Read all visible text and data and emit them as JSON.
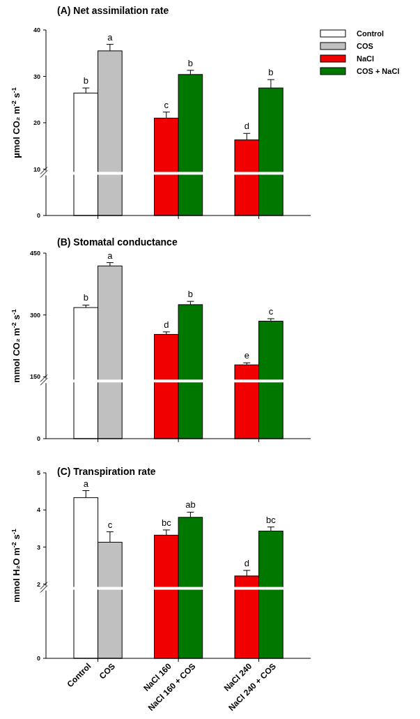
{
  "chart_data": [
    {
      "type": "bar",
      "title": "(A) Net assimilation rate",
      "ylabel": "µmol CO₂ m$^{-2}$ s$^{-1}$",
      "categories": [
        "Control",
        "COS",
        "NaCl 160",
        "NaCl 160 + COS",
        "NaCl 240",
        "NaCl 240 + COS"
      ],
      "series": [
        {
          "name": "Control",
          "color": "#ffffff",
          "values": [
            26.4,
            null,
            null,
            null,
            null,
            null
          ],
          "errors": [
            1.1,
            null,
            null,
            null,
            null,
            null
          ]
        },
        {
          "name": "COS",
          "color": "#c0c0c0",
          "values": [
            null,
            35.5,
            null,
            null,
            null,
            null
          ],
          "errors": [
            null,
            1.4,
            null,
            null,
            null,
            null
          ]
        },
        {
          "name": "NaCl",
          "color": "#f00000",
          "values": [
            null,
            null,
            21.0,
            null,
            16.3,
            null
          ],
          "errors": [
            null,
            null,
            1.3,
            null,
            1.4,
            null
          ]
        },
        {
          "name": "COS + NaCl",
          "color": "#007800",
          "values": [
            null,
            null,
            null,
            30.4,
            null,
            27.5
          ],
          "errors": [
            null,
            null,
            null,
            0.9,
            null,
            1.8
          ]
        }
      ],
      "ylim": [
        0,
        40
      ],
      "yticks": [
        0,
        10,
        20,
        30,
        40
      ],
      "legend": "top right",
      "tick_labels": "y",
      "annotations": [
        {
          "text": "b",
          "x": "Control",
          "y": 27.5
        },
        {
          "text": "a",
          "x": "COS",
          "y": 36.9
        },
        {
          "text": "c",
          "x": "NaCl 160",
          "y": 22.3
        },
        {
          "text": "b",
          "x": "NaCl 160 + COS",
          "y": 31.3
        },
        {
          "text": "d",
          "x": "NaCl 240",
          "y": 17.7
        },
        {
          "text": "b",
          "x": "NaCl 240 + COS",
          "y": 29.3
        }
      ]
    },
    {
      "type": "bar",
      "title": "(B) Stomatal conductance",
      "ylabel": "mmol CO₂ m$^{-2}$ s$^{-1}$",
      "categories": [
        "Control",
        "COS",
        "NaCl 160",
        "NaCl 160 + COS",
        "NaCl 240",
        "NaCl 240 + COS"
      ],
      "series": [
        {
          "color": "#ffffff",
          "values": [
            318,
            null,
            null,
            null,
            null,
            null
          ],
          "errors": [
            6,
            null,
            null,
            null,
            null,
            null
          ]
        },
        {
          "color": "#c0c0c0",
          "values": [
            null,
            419,
            null,
            null,
            null,
            null
          ],
          "errors": [
            null,
            8,
            null,
            null,
            null,
            null
          ]
        },
        {
          "color": "#f00000",
          "values": [
            null,
            null,
            253,
            null,
            179,
            null
          ],
          "errors": [
            null,
            null,
            6,
            null,
            5,
            null
          ]
        },
        {
          "color": "#007800",
          "values": [
            null,
            null,
            null,
            325,
            null,
            285
          ],
          "errors": [
            null,
            null,
            null,
            8,
            null,
            6
          ]
        }
      ],
      "ylim": [
        0,
        450
      ],
      "yticks": [
        0,
        150,
        300,
        450
      ],
      "tick_labels": "y",
      "annotations": [
        {
          "text": "b",
          "x": "Control",
          "y": 324
        },
        {
          "text": "a",
          "x": "COS",
          "y": 427
        },
        {
          "text": "d",
          "x": "NaCl 160",
          "y": 259
        },
        {
          "text": "b",
          "x": "NaCl 160 + COS",
          "y": 333
        },
        {
          "text": "e",
          "x": "NaCl 240",
          "y": 184
        },
        {
          "text": "c",
          "x": "NaCl 240 + COS",
          "y": 291
        }
      ]
    },
    {
      "type": "bar",
      "title": "(C) Transpiration rate",
      "ylabel": "mmol H₂O m$^{-2}$ s$^{-1}$",
      "categories": [
        "Control",
        "COS",
        "NaCl 160",
        "NaCl 160 + COS",
        "NaCl 240",
        "NaCl 240 + COS"
      ],
      "series": [
        {
          "color": "#ffffff",
          "values": [
            4.33,
            null,
            null,
            null,
            null,
            null
          ],
          "errors": [
            0.19,
            null,
            null,
            null,
            null,
            null
          ]
        },
        {
          "color": "#c0c0c0",
          "values": [
            null,
            3.13,
            null,
            null,
            null,
            null
          ],
          "errors": [
            null,
            0.28,
            null,
            null,
            null,
            null
          ]
        },
        {
          "color": "#f00000",
          "values": [
            null,
            null,
            3.32,
            null,
            2.22,
            null
          ],
          "errors": [
            null,
            null,
            0.14,
            null,
            0.15,
            null
          ]
        },
        {
          "color": "#007800",
          "values": [
            null,
            null,
            null,
            3.8,
            null,
            3.43
          ],
          "errors": [
            null,
            null,
            null,
            0.14,
            null,
            0.11
          ]
        }
      ],
      "ylim": [
        0,
        5
      ],
      "yticks": [
        0,
        2,
        3,
        4,
        5
      ],
      "annotations": [
        {
          "text": "a",
          "x": "Control",
          "y": 4.52
        },
        {
          "text": "c",
          "x": "COS",
          "y": 3.41
        },
        {
          "text": "bc",
          "x": "NaCl 160",
          "y": 3.46
        },
        {
          "text": "ab",
          "x": "NaCl 160 + COS",
          "y": 3.94
        },
        {
          "text": "d",
          "x": "NaCl 240",
          "y": 2.37
        },
        {
          "text": "bc",
          "x": "NaCl 240 + COS",
          "y": 3.54
        }
      ]
    }
  ]
}
